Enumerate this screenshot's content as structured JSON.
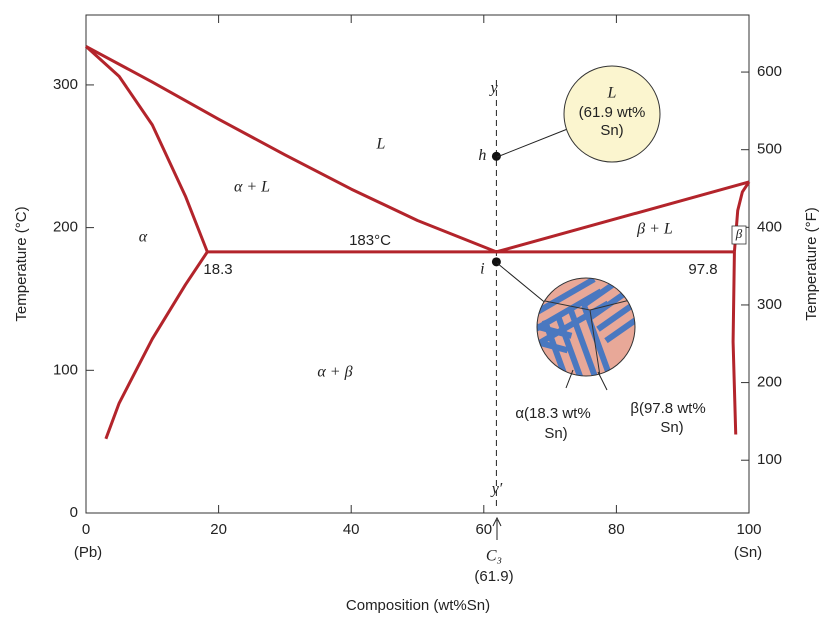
{
  "chart_data": {
    "type": "phase",
    "xlabel": "Composition (wt%Sn)",
    "ylabel": "Temperature (°C)",
    "y2label": "Temperature (°F)",
    "xlim": [
      0,
      100
    ],
    "ylim": [
      0,
      349
    ],
    "y2lim": [
      32,
      673.5
    ],
    "xticks": [
      0,
      20,
      40,
      60,
      80,
      100
    ],
    "yticks": [
      0,
      100,
      200,
      300
    ],
    "y2ticks": [
      100,
      200,
      300,
      400,
      500,
      600
    ],
    "color": "#b3242b",
    "series": [
      {
        "x": [
          0,
          10,
          20,
          30,
          40,
          50,
          61.9
        ],
        "y": [
          327,
          302,
          276,
          251,
          227,
          205,
          183
        ]
      },
      {
        "x": [
          61.9,
          100
        ],
        "y": [
          183,
          232
        ]
      },
      {
        "x": [
          0,
          5,
          10,
          15,
          18.3
        ],
        "y": [
          327,
          306,
          272,
          222,
          183
        ]
      },
      {
        "x": [
          18.3,
          15,
          10,
          5,
          3
        ],
        "y": [
          183,
          160,
          122,
          77,
          52
        ]
      },
      {
        "x": [
          18.3,
          97.8
        ],
        "y": [
          183,
          183
        ]
      },
      {
        "x": [
          97.8,
          98.3,
          99,
          100
        ],
        "y": [
          183,
          212,
          225,
          232
        ]
      },
      {
        "x": [
          97.8,
          97.6,
          98
        ],
        "y": [
          183,
          120,
          55
        ]
      }
    ],
    "points": {
      "x": [
        61.9,
        61.9
      ],
      "y": [
        250,
        176
      ],
      "labels": [
        "h",
        "i"
      ]
    },
    "annotations": [
      "α",
      "α + L",
      "L",
      "183°C",
      "18.3",
      "β + L",
      "β",
      "97.8",
      "α + β",
      "y",
      "y′",
      "(Pb)",
      "(Sn)",
      "C₃",
      "(61.9)"
    ],
    "bubble": [
      "L",
      "(61.9 wt%",
      "Sn)"
    ],
    "alpha_label": [
      "α(18.3 wt%",
      "Sn)"
    ],
    "beta_label": [
      "β(97.8 wt%",
      "Sn)"
    ]
  }
}
